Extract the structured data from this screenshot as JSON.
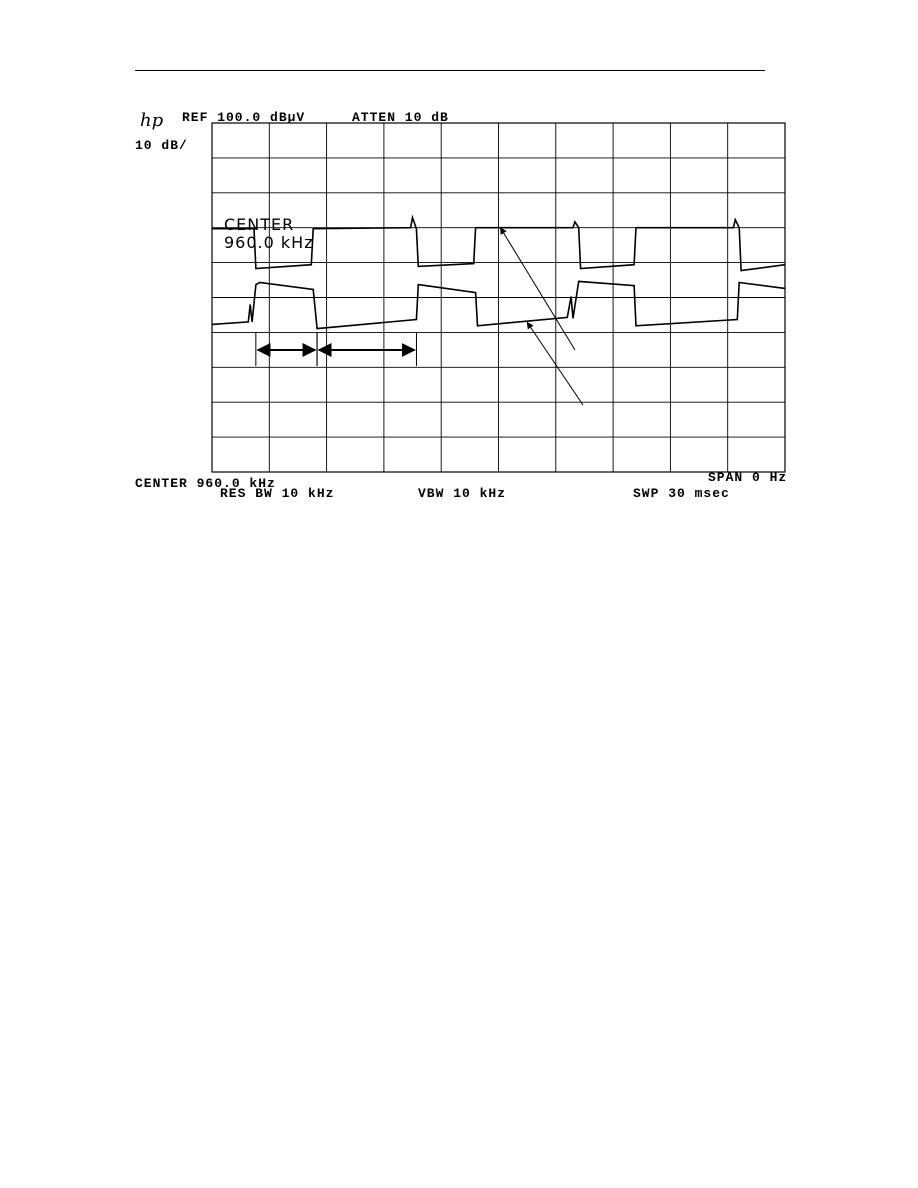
{
  "header": {
    "logo": "hp"
  },
  "instrument": {
    "ref_level": "REF 100.0 dBµV",
    "attenuation": "ATTEN 10 dB",
    "scale": "10 dB/",
    "center_overlay_line1": "CENTER",
    "center_overlay_line2": "960.0 kHz",
    "center": "CENTER 960.0 kHz",
    "span": "SPAN 0 Hz",
    "res_bw": "RES BW 10 kHz",
    "vbw": "VBW 10 kHz",
    "sweep": "SWP 30 msec"
  },
  "chart_data": {
    "type": "line",
    "xlim": [
      0,
      30
    ],
    "ylim": [
      0,
      100
    ],
    "x_unit": "ms",
    "y_unit": "dBµV",
    "x_divisions": 10,
    "y_divisions": 10,
    "grid": true,
    "trace_color": "#000000",
    "series": [
      {
        "points": [
          [
            0,
            69.7
          ],
          [
            2.2,
            69.7
          ],
          [
            2.3,
            58.3
          ],
          [
            5.2,
            59.4
          ],
          [
            5.3,
            69.7
          ],
          [
            10.4,
            70.0
          ],
          [
            10.5,
            72.9
          ],
          [
            10.7,
            69.7
          ],
          [
            10.8,
            58.9
          ],
          [
            13.7,
            59.7
          ],
          [
            13.8,
            70
          ],
          [
            18.9,
            70
          ],
          [
            19.0,
            71.7
          ],
          [
            19.2,
            70
          ],
          [
            19.3,
            58.3
          ],
          [
            22.1,
            59.4
          ],
          [
            22.2,
            70
          ],
          [
            27.3,
            70
          ],
          [
            27.4,
            72.3
          ],
          [
            27.6,
            70
          ],
          [
            27.7,
            57.7
          ],
          [
            30,
            59.4
          ]
        ]
      },
      {
        "points": [
          [
            0,
            42.3
          ],
          [
            1.9,
            43
          ],
          [
            2.0,
            48
          ],
          [
            2.1,
            43
          ],
          [
            2.3,
            53.7
          ],
          [
            2.5,
            54.3
          ],
          [
            5.3,
            52.3
          ],
          [
            5.5,
            41.1
          ],
          [
            10.7,
            43.7
          ],
          [
            10.8,
            53.7
          ],
          [
            13.8,
            51.4
          ],
          [
            13.9,
            41.9
          ],
          [
            18.6,
            44.3
          ],
          [
            18.8,
            50.3
          ],
          [
            18.9,
            44
          ],
          [
            19.2,
            54.6
          ],
          [
            22.1,
            53.4
          ],
          [
            22.2,
            41.9
          ],
          [
            27.5,
            43.7
          ],
          [
            27.6,
            54.3
          ],
          [
            30,
            52.6
          ]
        ]
      }
    ],
    "annotations": {
      "double_arrows_ms": [
        [
          2.4,
          5.4
        ],
        [
          5.6,
          10.6
        ]
      ],
      "pointer_arrows": [
        {
          "to": [
            15.1,
            70
          ]
        },
        {
          "to": [
            16.5,
            42.9
          ]
        }
      ]
    }
  }
}
